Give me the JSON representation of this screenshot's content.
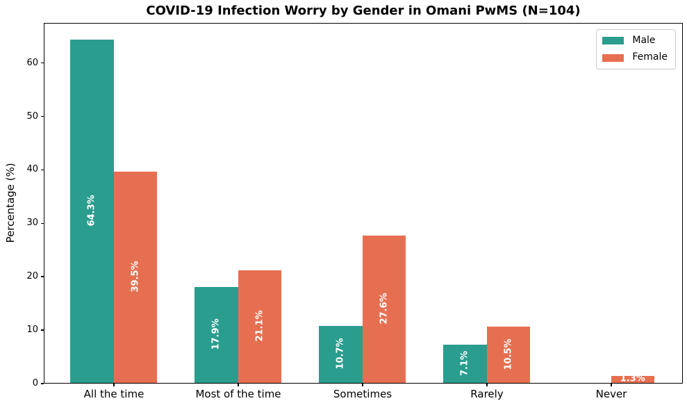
{
  "title": "COVID-19 Infection Worry by Gender in Omani PwMS (N=104)",
  "chart_data": {
    "type": "bar",
    "title": "COVID-19 Infection Worry by Gender in Omani PwMS (N=104)",
    "categories": [
      "All the time",
      "Most of the time",
      "Sometimes",
      "Rarely",
      "Never"
    ],
    "series": [
      {
        "name": "Male",
        "color": "#2a9d8f",
        "values": [
          64.3,
          17.9,
          10.7,
          7.1,
          0.0
        ],
        "bar_labels": [
          "64.3%",
          "17.9%",
          "10.7%",
          "7.1%",
          ""
        ]
      },
      {
        "name": "Female",
        "color": "#e76f51",
        "values": [
          39.5,
          21.1,
          27.6,
          10.5,
          1.3
        ],
        "bar_labels": [
          "39.5%",
          "21.1%",
          "27.6%",
          "10.5%",
          "1.3%"
        ]
      }
    ],
    "xlabel": "",
    "ylabel": "Percentage (%)",
    "ylim": [
      0,
      67.5
    ],
    "yticks": [
      0,
      10,
      20,
      30,
      40,
      50,
      60
    ],
    "grid": false,
    "legend_position": "upper right",
    "bar_label_color": "#ffffff",
    "axis_color": "#000000",
    "background_color": "#ffffff"
  }
}
